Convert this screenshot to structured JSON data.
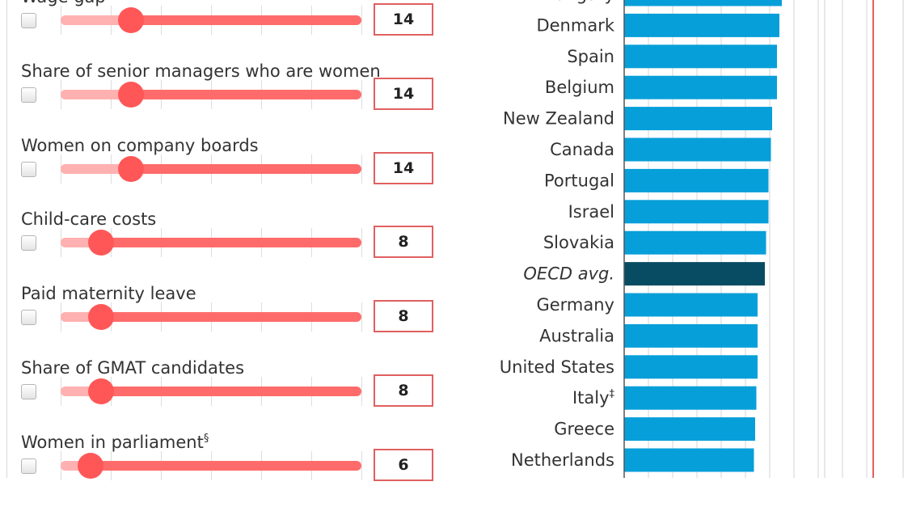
{
  "sliders": [
    {
      "label": "Wage gap",
      "footnote": "",
      "value": 14,
      "weight": 14,
      "checked": false
    },
    {
      "label": "Share of senior managers who are women",
      "footnote": "",
      "value": 14,
      "weight": 14,
      "checked": false
    },
    {
      "label": "Women on company boards",
      "footnote": "",
      "value": 14,
      "weight": 14,
      "checked": false
    },
    {
      "label": "Child-care costs",
      "footnote": "",
      "value": 8,
      "weight": 8,
      "checked": false
    },
    {
      "label": "Paid maternity leave",
      "footnote": "",
      "value": 8,
      "weight": 8,
      "checked": false
    },
    {
      "label": "Share of GMAT candidates",
      "footnote": "",
      "value": 8,
      "weight": 8,
      "checked": false
    },
    {
      "label": "Women in parliament",
      "footnote": "§",
      "value": 6,
      "weight": 6,
      "checked": false
    }
  ],
  "slider_scale": {
    "min": 0,
    "max": 60
  },
  "chart_data": {
    "type": "bar",
    "orientation": "horizontal",
    "categories": [
      "Hungary",
      "Denmark",
      "Spain",
      "Belgium",
      "New Zealand",
      "Canada",
      "Portugal",
      "Israel",
      "Slovakia",
      "OECD avg.",
      "Germany",
      "Australia",
      "United States",
      "Italy",
      "Greece",
      "Netherlands"
    ],
    "category_footnotes": {
      "Italy": "‡"
    },
    "highlight": "OECD avg.",
    "values": [
      65,
      64,
      63,
      63,
      61,
      60.5,
      59.5,
      59.5,
      58.5,
      58,
      55,
      55,
      55,
      54.5,
      54,
      53.5
    ],
    "xlim": [
      0,
      100
    ],
    "title": "",
    "xlabel": "",
    "ylabel": "",
    "grid": true,
    "colors": {
      "bar": "#079fd9",
      "highlight": "#084c64",
      "marker": "#d92b2b"
    }
  }
}
